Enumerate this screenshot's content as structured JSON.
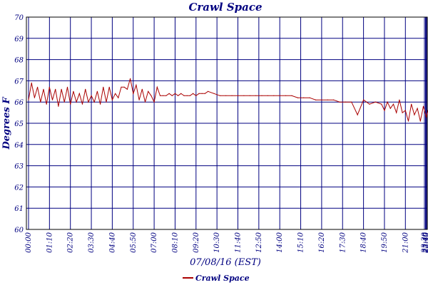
{
  "chart_data": {
    "type": "line",
    "title": "Crawl Space",
    "xlabel": "07/08/16 (EST)",
    "ylabel": "Degrees F",
    "ylim": [
      60,
      70
    ],
    "yticks": [
      "60",
      "61",
      "62",
      "63",
      "64",
      "65",
      "66",
      "67",
      "68",
      "69",
      "70"
    ],
    "xticks": [
      "00:00",
      "01:10",
      "02:20",
      "03:30",
      "04:40",
      "05:50",
      "07:00",
      "08:10",
      "09:20",
      "10:30",
      "11:40",
      "12:50",
      "14:00",
      "15:10",
      "16:20",
      "17:30",
      "18:40",
      "19:50",
      "21:00",
      "22:10",
      "23:20",
      "23:30",
      "23:40",
      "23:50"
    ],
    "grid": true,
    "legend": "bottom",
    "series": [
      {
        "name": "Crawl Space",
        "color": "#aa0000",
        "x_minutes": [
          0,
          10,
          20,
          30,
          40,
          50,
          60,
          70,
          80,
          90,
          100,
          110,
          120,
          130,
          140,
          150,
          160,
          170,
          180,
          190,
          200,
          210,
          220,
          230,
          240,
          250,
          260,
          270,
          280,
          290,
          300,
          310,
          320,
          330,
          340,
          350,
          360,
          370,
          380,
          390,
          400,
          410,
          420,
          430,
          440,
          450,
          460,
          470,
          480,
          490,
          500,
          510,
          520,
          530,
          540,
          550,
          560,
          570,
          580,
          590,
          600,
          620,
          640,
          660,
          680,
          700,
          720,
          740,
          760,
          780,
          800,
          820,
          840,
          860,
          880,
          900,
          920,
          940,
          960,
          980,
          1000,
          1020,
          1040,
          1060,
          1080,
          1100,
          1120,
          1140,
          1160,
          1180,
          1190,
          1200,
          1210,
          1220,
          1230,
          1240,
          1250,
          1260,
          1270,
          1280,
          1290,
          1300,
          1310,
          1320,
          1330,
          1340,
          1350,
          1360,
          1370,
          1380,
          1390,
          1400,
          1410,
          1420,
          1430,
          1439
        ],
        "values": [
          66.1,
          66.9,
          66.2,
          66.7,
          66.0,
          66.6,
          65.9,
          66.7,
          66.1,
          66.6,
          65.8,
          66.6,
          66.0,
          66.7,
          65.9,
          66.5,
          66.0,
          66.4,
          65.9,
          66.6,
          66.0,
          66.3,
          66.0,
          66.5,
          65.9,
          66.7,
          66.0,
          66.7,
          66.1,
          66.4,
          66.2,
          66.7,
          66.7,
          66.6,
          67.1,
          66.4,
          66.8,
          66.1,
          66.6,
          66.0,
          66.5,
          66.3,
          66.0,
          66.7,
          66.3,
          66.3,
          66.3,
          66.4,
          66.3,
          66.4,
          66.3,
          66.4,
          66.3,
          66.3,
          66.3,
          66.4,
          66.3,
          66.4,
          66.4,
          66.4,
          66.5,
          66.4,
          66.3,
          66.3,
          66.3,
          66.3,
          66.3,
          66.3,
          66.3,
          66.3,
          66.3,
          66.3,
          66.3,
          66.3,
          66.3,
          66.2,
          66.2,
          66.2,
          66.1,
          66.1,
          66.1,
          66.1,
          66.0,
          66.0,
          66.0,
          65.4,
          66.1,
          65.9,
          66.0,
          65.9,
          65.6,
          66.0,
          65.7,
          65.9,
          65.5,
          66.1,
          65.5,
          65.6,
          65.1,
          65.9,
          65.4,
          65.7,
          65.1,
          65.8,
          65.3,
          65.8,
          65.1,
          65.8,
          65.6,
          65.9,
          65.3,
          65.8,
          65.6,
          66.0,
          65.8,
          66.0
        ]
      }
    ]
  }
}
